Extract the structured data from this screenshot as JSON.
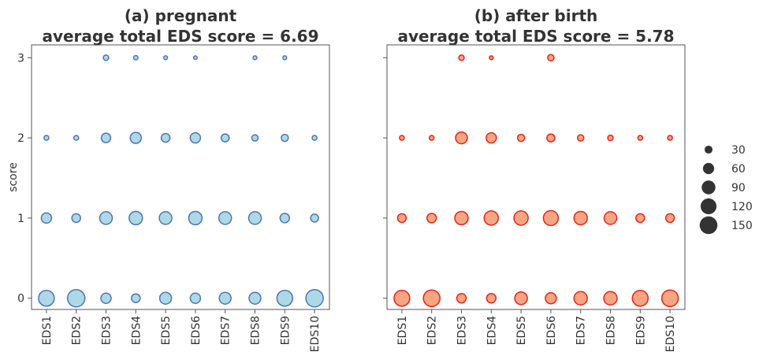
{
  "chart_data": [
    {
      "type": "bubble",
      "title": "(a) pregnant",
      "subtitle": "average total EDS score = 6.69",
      "ylabel": "score",
      "categories": [
        "EDS1",
        "EDS2",
        "EDS3",
        "EDS4",
        "EDS5",
        "EDS6",
        "EDS7",
        "EDS8",
        "EDS9",
        "EDS10"
      ],
      "fill": "#add8e6",
      "stroke": "#4f74b6",
      "ylim": [
        -0.14,
        3.16
      ],
      "yticks": [
        0,
        1,
        2,
        3
      ],
      "series": [
        {
          "y": 0,
          "sizes": [
            118,
            143,
            50,
            36,
            66,
            50,
            66,
            66,
            118,
            143
          ]
        },
        {
          "y": 1,
          "sizes": [
            50,
            36,
            76,
            85,
            76,
            85,
            76,
            76,
            42,
            30
          ]
        },
        {
          "y": 2,
          "sizes": [
            11,
            11,
            42,
            58,
            36,
            50,
            30,
            19,
            24,
            11
          ]
        },
        {
          "y": 3,
          "sizes": [
            null,
            null,
            14,
            9,
            7,
            6,
            null,
            7,
            7,
            null
          ]
        }
      ]
    },
    {
      "type": "bubble",
      "title": "(b) after birth",
      "subtitle": "average total EDS score = 5.78",
      "categories": [
        "EDS1",
        "EDS2",
        "EDS3",
        "EDS4",
        "EDS5",
        "EDS6",
        "EDS7",
        "EDS8",
        "EDS9",
        "EDS10"
      ],
      "fill": "#f4a582",
      "stroke": "#e8251c",
      "ylim": [
        -0.14,
        3.16
      ],
      "yticks": [
        0,
        1,
        2,
        3
      ],
      "series": [
        {
          "y": 0,
          "sizes": [
            118,
            130,
            42,
            42,
            76,
            58,
            85,
            85,
            118,
            130
          ]
        },
        {
          "y": 1,
          "sizes": [
            36,
            42,
            85,
            96,
            96,
            106,
            85,
            76,
            36,
            36
          ]
        },
        {
          "y": 2,
          "sizes": [
            11,
            11,
            66,
            50,
            24,
            30,
            19,
            14,
            11,
            11
          ]
        },
        {
          "y": 3,
          "sizes": [
            null,
            null,
            14,
            7,
            null,
            19,
            null,
            null,
            null,
            null
          ]
        }
      ]
    }
  ],
  "size_legend": {
    "values": [
      30,
      60,
      90,
      120,
      150
    ],
    "color": "#333333"
  }
}
